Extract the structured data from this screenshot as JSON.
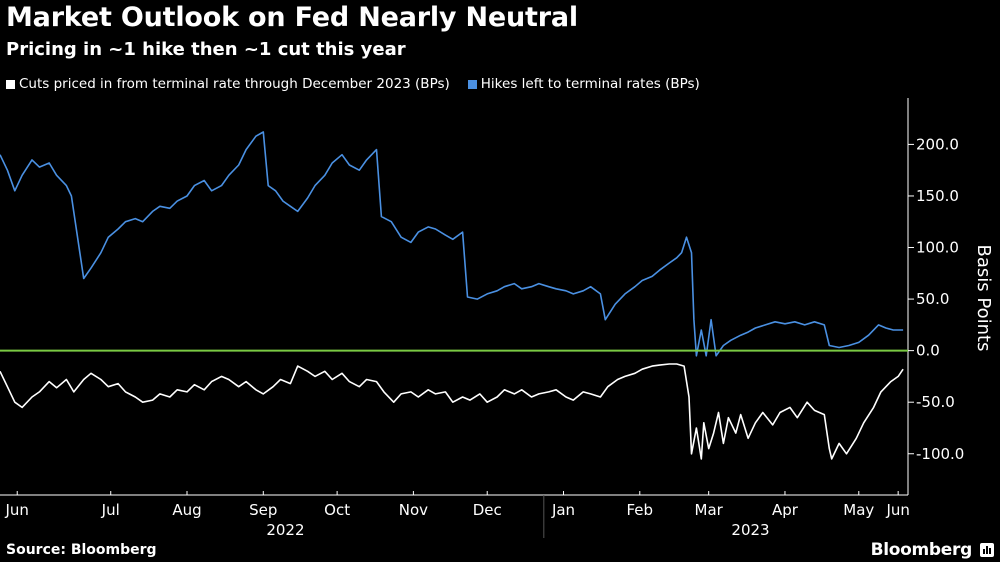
{
  "title": "Market Outlook on Fed Nearly Neutral",
  "subtitle": "Pricing in ~1 hike then ~1 cut this year",
  "source": "Source: Bloomberg",
  "brand": "Bloomberg",
  "colors": {
    "background": "#000000",
    "series_white": "#ffffff",
    "series_blue": "#4a90e2",
    "zero_line": "#7ac943",
    "axis": "#ffffff"
  },
  "chart_data": {
    "type": "line",
    "ylabel": "Basis Points",
    "ylim": [
      -140,
      245
    ],
    "yticks": [
      {
        "value": 200,
        "label": "200.0"
      },
      {
        "value": 150,
        "label": "150.0"
      },
      {
        "value": 100,
        "label": "100.0"
      },
      {
        "value": 50,
        "label": "50.0"
      },
      {
        "value": 0,
        "label": "0.0"
      },
      {
        "value": -50,
        "label": "-50.0"
      },
      {
        "value": -100,
        "label": "-100.0"
      }
    ],
    "xlim": [
      "2022-06-01",
      "2023-06-05"
    ],
    "xticks": [
      {
        "label": "Jun",
        "date": "2022-06-08"
      },
      {
        "label": "Jul",
        "date": "2022-07-16"
      },
      {
        "label": "Aug",
        "date": "2022-08-16"
      },
      {
        "label": "Sep",
        "date": "2022-09-16"
      },
      {
        "label": "Oct",
        "date": "2022-10-16"
      },
      {
        "label": "Nov",
        "date": "2022-11-16"
      },
      {
        "label": "Dec",
        "date": "2022-12-16"
      },
      {
        "label": "Jan",
        "date": "2023-01-16"
      },
      {
        "label": "Feb",
        "date": "2023-02-16"
      },
      {
        "label": "Mar",
        "date": "2023-03-16"
      },
      {
        "label": "Apr",
        "date": "2023-04-16"
      },
      {
        "label": "May",
        "date": "2023-05-16"
      },
      {
        "label": "Jun",
        "date": "2023-06-01"
      }
    ],
    "year_labels": [
      {
        "label": "2022",
        "date": "2022-09-25"
      },
      {
        "label": "2023",
        "date": "2023-04-02"
      }
    ],
    "year_divider": "2023-01-08",
    "reference_line": 0,
    "grid": false,
    "legend_position": "top-left",
    "series": [
      {
        "name": "Cuts priced in from terminal rate through December 2023 (BPs)",
        "color": "#ffffff",
        "points": [
          [
            "2022-06-01",
            -20
          ],
          [
            "2022-06-04",
            -35
          ],
          [
            "2022-06-07",
            -50
          ],
          [
            "2022-06-10",
            -55
          ],
          [
            "2022-06-14",
            -45
          ],
          [
            "2022-06-17",
            -40
          ],
          [
            "2022-06-21",
            -30
          ],
          [
            "2022-06-24",
            -36
          ],
          [
            "2022-06-28",
            -28
          ],
          [
            "2022-07-01",
            -40
          ],
          [
            "2022-07-05",
            -28
          ],
          [
            "2022-07-08",
            -22
          ],
          [
            "2022-07-12",
            -28
          ],
          [
            "2022-07-15",
            -35
          ],
          [
            "2022-07-19",
            -32
          ],
          [
            "2022-07-22",
            -40
          ],
          [
            "2022-07-26",
            -45
          ],
          [
            "2022-07-29",
            -50
          ],
          [
            "2022-08-02",
            -48
          ],
          [
            "2022-08-05",
            -42
          ],
          [
            "2022-08-09",
            -45
          ],
          [
            "2022-08-12",
            -38
          ],
          [
            "2022-08-16",
            -40
          ],
          [
            "2022-08-19",
            -33
          ],
          [
            "2022-08-23",
            -38
          ],
          [
            "2022-08-26",
            -30
          ],
          [
            "2022-08-30",
            -25
          ],
          [
            "2022-09-02",
            -28
          ],
          [
            "2022-09-06",
            -35
          ],
          [
            "2022-09-09",
            -30
          ],
          [
            "2022-09-13",
            -38
          ],
          [
            "2022-09-16",
            -42
          ],
          [
            "2022-09-20",
            -35
          ],
          [
            "2022-09-23",
            -28
          ],
          [
            "2022-09-27",
            -32
          ],
          [
            "2022-09-30",
            -15
          ],
          [
            "2022-10-04",
            -20
          ],
          [
            "2022-10-07",
            -25
          ],
          [
            "2022-10-11",
            -20
          ],
          [
            "2022-10-14",
            -28
          ],
          [
            "2022-10-18",
            -22
          ],
          [
            "2022-10-21",
            -30
          ],
          [
            "2022-10-25",
            -35
          ],
          [
            "2022-10-28",
            -28
          ],
          [
            "2022-11-01",
            -30
          ],
          [
            "2022-11-04",
            -40
          ],
          [
            "2022-11-08",
            -50
          ],
          [
            "2022-11-11",
            -42
          ],
          [
            "2022-11-15",
            -40
          ],
          [
            "2022-11-18",
            -45
          ],
          [
            "2022-11-22",
            -38
          ],
          [
            "2022-11-25",
            -42
          ],
          [
            "2022-11-29",
            -40
          ],
          [
            "2022-12-02",
            -50
          ],
          [
            "2022-12-06",
            -45
          ],
          [
            "2022-12-09",
            -48
          ],
          [
            "2022-12-13",
            -42
          ],
          [
            "2022-12-16",
            -50
          ],
          [
            "2022-12-20",
            -45
          ],
          [
            "2022-12-23",
            -38
          ],
          [
            "2022-12-27",
            -42
          ],
          [
            "2022-12-30",
            -38
          ],
          [
            "2023-01-03",
            -45
          ],
          [
            "2023-01-06",
            -42
          ],
          [
            "2023-01-10",
            -40
          ],
          [
            "2023-01-13",
            -38
          ],
          [
            "2023-01-17",
            -45
          ],
          [
            "2023-01-20",
            -48
          ],
          [
            "2023-01-24",
            -40
          ],
          [
            "2023-01-27",
            -42
          ],
          [
            "2023-01-31",
            -45
          ],
          [
            "2023-02-03",
            -35
          ],
          [
            "2023-02-07",
            -28
          ],
          [
            "2023-02-10",
            -25
          ],
          [
            "2023-02-14",
            -22
          ],
          [
            "2023-02-17",
            -18
          ],
          [
            "2023-02-21",
            -15
          ],
          [
            "2023-02-24",
            -14
          ],
          [
            "2023-02-28",
            -13
          ],
          [
            "2023-03-03",
            -13
          ],
          [
            "2023-03-06",
            -15
          ],
          [
            "2023-03-08",
            -45
          ],
          [
            "2023-03-09",
            -100
          ],
          [
            "2023-03-11",
            -75
          ],
          [
            "2023-03-13",
            -105
          ],
          [
            "2023-03-14",
            -70
          ],
          [
            "2023-03-16",
            -95
          ],
          [
            "2023-03-18",
            -80
          ],
          [
            "2023-03-20",
            -60
          ],
          [
            "2023-03-22",
            -90
          ],
          [
            "2023-03-24",
            -65
          ],
          [
            "2023-03-27",
            -80
          ],
          [
            "2023-03-29",
            -62
          ],
          [
            "2023-04-01",
            -85
          ],
          [
            "2023-04-04",
            -70
          ],
          [
            "2023-04-07",
            -60
          ],
          [
            "2023-04-11",
            -72
          ],
          [
            "2023-04-14",
            -60
          ],
          [
            "2023-04-18",
            -55
          ],
          [
            "2023-04-21",
            -65
          ],
          [
            "2023-04-25",
            -50
          ],
          [
            "2023-04-28",
            -58
          ],
          [
            "2023-05-02",
            -62
          ],
          [
            "2023-05-04",
            -95
          ],
          [
            "2023-05-05",
            -105
          ],
          [
            "2023-05-08",
            -90
          ],
          [
            "2023-05-11",
            -100
          ],
          [
            "2023-05-15",
            -85
          ],
          [
            "2023-05-18",
            -70
          ],
          [
            "2023-05-22",
            -55
          ],
          [
            "2023-05-25",
            -40
          ],
          [
            "2023-05-29",
            -30
          ],
          [
            "2023-06-01",
            -25
          ],
          [
            "2023-06-03",
            -18
          ]
        ]
      },
      {
        "name": "Hikes left to terminal rates (BPs)",
        "color": "#4a90e2",
        "points": [
          [
            "2022-06-01",
            190
          ],
          [
            "2022-06-04",
            175
          ],
          [
            "2022-06-07",
            155
          ],
          [
            "2022-06-10",
            170
          ],
          [
            "2022-06-14",
            185
          ],
          [
            "2022-06-17",
            178
          ],
          [
            "2022-06-21",
            182
          ],
          [
            "2022-06-24",
            170
          ],
          [
            "2022-06-28",
            160
          ],
          [
            "2022-06-30",
            150
          ],
          [
            "2022-07-05",
            70
          ],
          [
            "2022-07-08",
            80
          ],
          [
            "2022-07-12",
            95
          ],
          [
            "2022-07-15",
            110
          ],
          [
            "2022-07-19",
            118
          ],
          [
            "2022-07-22",
            125
          ],
          [
            "2022-07-26",
            128
          ],
          [
            "2022-07-29",
            125
          ],
          [
            "2022-08-02",
            135
          ],
          [
            "2022-08-05",
            140
          ],
          [
            "2022-08-09",
            138
          ],
          [
            "2022-08-12",
            145
          ],
          [
            "2022-08-16",
            150
          ],
          [
            "2022-08-19",
            160
          ],
          [
            "2022-08-23",
            165
          ],
          [
            "2022-08-26",
            155
          ],
          [
            "2022-08-30",
            160
          ],
          [
            "2022-09-02",
            170
          ],
          [
            "2022-09-06",
            180
          ],
          [
            "2022-09-09",
            195
          ],
          [
            "2022-09-13",
            208
          ],
          [
            "2022-09-16",
            212
          ],
          [
            "2022-09-18",
            160
          ],
          [
            "2022-09-21",
            155
          ],
          [
            "2022-09-24",
            145
          ],
          [
            "2022-09-27",
            140
          ],
          [
            "2022-09-30",
            135
          ],
          [
            "2022-10-04",
            148
          ],
          [
            "2022-10-07",
            160
          ],
          [
            "2022-10-11",
            170
          ],
          [
            "2022-10-14",
            182
          ],
          [
            "2022-10-18",
            190
          ],
          [
            "2022-10-21",
            180
          ],
          [
            "2022-10-25",
            175
          ],
          [
            "2022-10-28",
            185
          ],
          [
            "2022-11-01",
            195
          ],
          [
            "2022-11-03",
            130
          ],
          [
            "2022-11-07",
            125
          ],
          [
            "2022-11-11",
            110
          ],
          [
            "2022-11-15",
            105
          ],
          [
            "2022-11-18",
            115
          ],
          [
            "2022-11-22",
            120
          ],
          [
            "2022-11-25",
            118
          ],
          [
            "2022-11-29",
            112
          ],
          [
            "2022-12-02",
            108
          ],
          [
            "2022-12-06",
            115
          ],
          [
            "2022-12-08",
            52
          ],
          [
            "2022-12-12",
            50
          ],
          [
            "2022-12-16",
            55
          ],
          [
            "2022-12-20",
            58
          ],
          [
            "2022-12-23",
            62
          ],
          [
            "2022-12-27",
            65
          ],
          [
            "2022-12-30",
            60
          ],
          [
            "2023-01-03",
            62
          ],
          [
            "2023-01-06",
            65
          ],
          [
            "2023-01-10",
            62
          ],
          [
            "2023-01-13",
            60
          ],
          [
            "2023-01-17",
            58
          ],
          [
            "2023-01-20",
            55
          ],
          [
            "2023-01-24",
            58
          ],
          [
            "2023-01-27",
            62
          ],
          [
            "2023-01-31",
            55
          ],
          [
            "2023-02-02",
            30
          ],
          [
            "2023-02-06",
            45
          ],
          [
            "2023-02-10",
            55
          ],
          [
            "2023-02-14",
            62
          ],
          [
            "2023-02-17",
            68
          ],
          [
            "2023-02-21",
            72
          ],
          [
            "2023-02-24",
            78
          ],
          [
            "2023-02-28",
            85
          ],
          [
            "2023-03-03",
            90
          ],
          [
            "2023-03-05",
            95
          ],
          [
            "2023-03-07",
            110
          ],
          [
            "2023-03-09",
            95
          ],
          [
            "2023-03-10",
            30
          ],
          [
            "2023-03-11",
            -5
          ],
          [
            "2023-03-13",
            20
          ],
          [
            "2023-03-15",
            -5
          ],
          [
            "2023-03-17",
            30
          ],
          [
            "2023-03-19",
            -5
          ],
          [
            "2023-03-22",
            5
          ],
          [
            "2023-03-25",
            10
          ],
          [
            "2023-03-29",
            15
          ],
          [
            "2023-04-01",
            18
          ],
          [
            "2023-04-04",
            22
          ],
          [
            "2023-04-08",
            25
          ],
          [
            "2023-04-12",
            28
          ],
          [
            "2023-04-16",
            26
          ],
          [
            "2023-04-20",
            28
          ],
          [
            "2023-04-24",
            25
          ],
          [
            "2023-04-28",
            28
          ],
          [
            "2023-05-02",
            25
          ],
          [
            "2023-05-04",
            5
          ],
          [
            "2023-05-08",
            3
          ],
          [
            "2023-05-12",
            5
          ],
          [
            "2023-05-16",
            8
          ],
          [
            "2023-05-20",
            15
          ],
          [
            "2023-05-24",
            25
          ],
          [
            "2023-05-27",
            22
          ],
          [
            "2023-05-30",
            20
          ],
          [
            "2023-06-03",
            20
          ]
        ]
      }
    ]
  }
}
